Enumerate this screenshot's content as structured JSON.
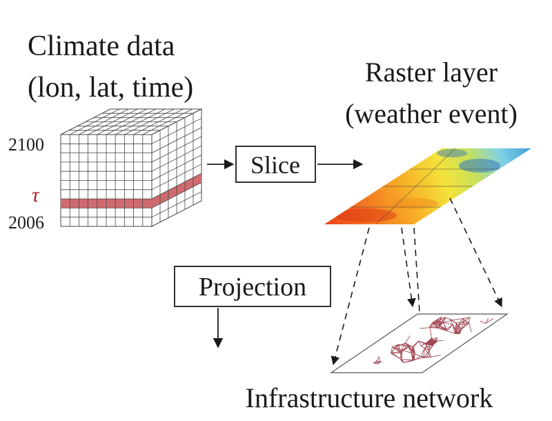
{
  "title": {
    "line1": "Climate data",
    "line2": "(lon, lat, time)"
  },
  "cube": {
    "year_top": "2100",
    "year_bottom": "2006",
    "tau": "τ"
  },
  "slice_box": {
    "label": "Slice"
  },
  "raster": {
    "line1": "Raster layer",
    "line2": "(weather event)"
  },
  "projection_box": {
    "label": "Projection"
  },
  "network": {
    "label": "Infrastructure network"
  },
  "colors": {
    "slice_band": "#cf6b70",
    "tau": "#b0202a",
    "grid": "#444444"
  }
}
